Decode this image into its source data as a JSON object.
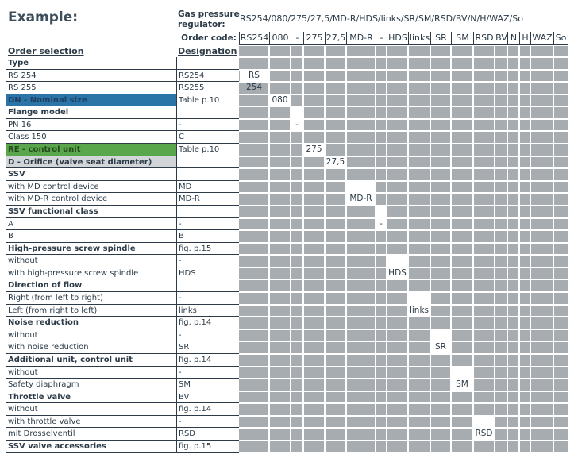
{
  "title": "Example:",
  "regulator_label_line1": "Gas pressure",
  "regulator_label_line2": "regulator:",
  "regulator_code": "RS254/080/275/27,5/MD-R/HDS/links/SR/SM/RSD/BV/N/H/WAZ/So",
  "order_code_label": "Order code:",
  "header_selection": "Order selection",
  "header_designation": "Designation",
  "code_columns": [
    "RS254",
    "080",
    "-",
    "275",
    "27,5",
    "MD-R",
    "-",
    "HDS",
    "links",
    "SR",
    "SM",
    "RSD",
    "BV",
    "N",
    "H",
    "WAZ",
    "So"
  ],
  "rows": [
    {
      "label": "Type",
      "style": "bold",
      "designation": ""
    },
    {
      "label": "RS 254",
      "style": "",
      "designation": "RS254",
      "mark": {
        "col": 0,
        "text": "RS 254"
      }
    },
    {
      "label": "RS 255",
      "style": "",
      "designation": "RS255"
    },
    {
      "label": "DN - Nominal size",
      "style": "blue",
      "designation": "Table p.10",
      "mark": {
        "col": 1,
        "text": "080"
      }
    },
    {
      "label": "Flange model",
      "style": "bold",
      "designation": ""
    },
    {
      "label": "PN 16",
      "style": "",
      "designation": "-",
      "mark": {
        "col": 2,
        "text": "-"
      }
    },
    {
      "label": "Class 150",
      "style": "",
      "designation": "C"
    },
    {
      "label": "RE - control unit",
      "style": "green",
      "designation": "Table p.10",
      "mark": {
        "col": 3,
        "text": "275"
      }
    },
    {
      "label": "D - Orifice (valve seat diameter)",
      "style": "grey",
      "designation": "",
      "mark": {
        "col": 4,
        "text": "27,5"
      }
    },
    {
      "label": "SSV",
      "style": "bold",
      "designation": ""
    },
    {
      "label": "with MD control device",
      "style": "",
      "designation": "MD"
    },
    {
      "label": "with MD-R control device",
      "style": "",
      "designation": "MD-R",
      "mark": {
        "col": 5,
        "text": "MD-R"
      }
    },
    {
      "label": "SSV functional class",
      "style": "bold",
      "designation": ""
    },
    {
      "label": "A",
      "style": "",
      "designation": "-",
      "mark": {
        "col": 6,
        "text": "-"
      }
    },
    {
      "label": "B",
      "style": "",
      "designation": "B"
    },
    {
      "label": "High-pressure screw spindle",
      "style": "bold",
      "designation": "fig. p.15"
    },
    {
      "label": "without",
      "style": "",
      "designation": "-"
    },
    {
      "label": "with high-pressure screw spindle",
      "style": "",
      "designation": "HDS",
      "mark": {
        "col": 7,
        "text": "HDS"
      }
    },
    {
      "label": "Direction of flow",
      "style": "bold",
      "designation": ""
    },
    {
      "label": "Right (from left to right)",
      "style": "",
      "designation": "-"
    },
    {
      "label": "Left (from right to left)",
      "style": "",
      "designation": "links",
      "mark": {
        "col": 8,
        "text": "links"
      }
    },
    {
      "label": "Noise reduction",
      "style": "bold",
      "designation": "fig. p.14"
    },
    {
      "label": "without",
      "style": "",
      "designation": "-"
    },
    {
      "label": "with noise reduction",
      "style": "",
      "designation": "SR",
      "mark": {
        "col": 9,
        "text": "SR"
      }
    },
    {
      "label": "Additional unit, control unit",
      "style": "bold",
      "designation": "fig. p.14"
    },
    {
      "label": "without",
      "style": "",
      "designation": "-"
    },
    {
      "label": "Safety diaphragm",
      "style": "",
      "designation": "SM",
      "mark": {
        "col": 10,
        "text": "SM"
      }
    },
    {
      "label": "Throttle valve",
      "style": "bold",
      "designation": "BV"
    },
    {
      "label": "without",
      "style": "",
      "designation": "fig. p.14"
    },
    {
      "label": "with throttle valve",
      "style": "",
      "designation": "-"
    },
    {
      "label": "mit Drosselventil",
      "style": "",
      "designation": "RSD",
      "mark": {
        "col": 11,
        "text": "RSD"
      }
    },
    {
      "label": "SSV valve accessories",
      "style": "bold",
      "designation": "fig. p.15"
    }
  ],
  "colors": {
    "grid": "#a7acb0",
    "blue": "#2a74a8",
    "green": "#5aa64c",
    "grey_row": "#d3d6d8",
    "text": "#2c3b47"
  }
}
